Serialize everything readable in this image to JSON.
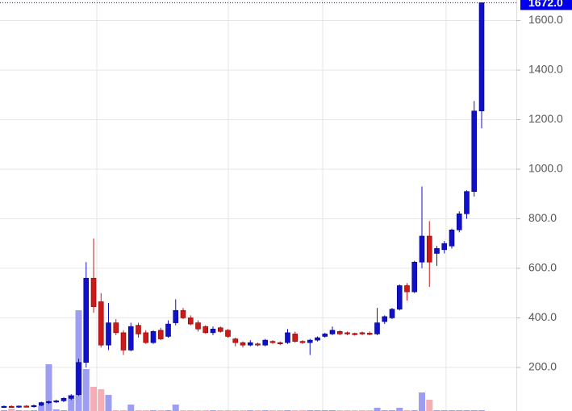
{
  "chart_data": {
    "type": "candlestick",
    "open": [
      40,
      43,
      41,
      44,
      42,
      46,
      58,
      62,
      65,
      75,
      90,
      220,
      560,
      465,
      290,
      380,
      340,
      270,
      370,
      340,
      300,
      350,
      325,
      380,
      430,
      400,
      380,
      365,
      340,
      360,
      350,
      315,
      300,
      290,
      295,
      290,
      305,
      300,
      300,
      335,
      305,
      300,
      310,
      325,
      335,
      345,
      340,
      337,
      340,
      338,
      335,
      385,
      400,
      435,
      530,
      505,
      625,
      730,
      660,
      675,
      690,
      755,
      820,
      910,
      1235
    ],
    "high": [
      46,
      47,
      46,
      48,
      50,
      62,
      66,
      70,
      80,
      92,
      235,
      625,
      720,
      500,
      460,
      395,
      350,
      380,
      380,
      350,
      350,
      360,
      390,
      475,
      440,
      410,
      390,
      370,
      365,
      365,
      355,
      320,
      305,
      310,
      300,
      315,
      310,
      305,
      355,
      345,
      310,
      315,
      325,
      340,
      365,
      350,
      345,
      340,
      345,
      345,
      440,
      410,
      440,
      535,
      540,
      630,
      930,
      790,
      690,
      710,
      760,
      830,
      915,
      1275,
      1672
    ],
    "low": [
      36,
      38,
      37,
      40,
      38,
      44,
      52,
      56,
      60,
      68,
      85,
      200,
      420,
      280,
      270,
      330,
      250,
      265,
      320,
      295,
      295,
      310,
      320,
      370,
      395,
      370,
      345,
      335,
      330,
      340,
      320,
      285,
      280,
      285,
      285,
      285,
      295,
      290,
      295,
      300,
      295,
      250,
      305,
      320,
      330,
      330,
      330,
      328,
      330,
      330,
      330,
      375,
      395,
      430,
      470,
      500,
      600,
      525,
      610,
      660,
      680,
      745,
      800,
      890,
      1165
    ],
    "close": [
      43,
      41,
      44,
      42,
      46,
      58,
      62,
      65,
      75,
      85,
      220,
      560,
      445,
      290,
      380,
      340,
      270,
      365,
      335,
      300,
      345,
      315,
      375,
      430,
      400,
      375,
      355,
      340,
      355,
      345,
      325,
      300,
      290,
      300,
      290,
      310,
      300,
      298,
      340,
      305,
      300,
      310,
      320,
      335,
      350,
      335,
      335,
      333,
      335,
      333,
      380,
      405,
      435,
      530,
      505,
      625,
      730,
      625,
      680,
      700,
      755,
      820,
      910,
      1235,
      1672
    ],
    "volume": [
      1,
      3,
      1,
      1,
      1,
      6,
      58,
      2,
      1,
      20,
      125,
      52,
      30,
      27,
      20,
      1,
      1,
      8,
      1,
      1,
      1,
      1,
      1,
      8,
      1,
      1,
      1,
      1,
      1,
      1,
      1,
      1,
      1,
      1,
      1,
      1,
      1,
      1,
      1,
      1,
      1,
      1,
      1,
      1,
      1,
      1,
      1,
      1,
      1,
      1,
      4,
      1,
      1,
      4,
      1,
      1,
      23,
      14,
      1,
      1,
      1,
      1,
      1,
      1,
      1
    ],
    "volume_lim": [
      0,
      150
    ],
    "up_color": "#1010c8",
    "down_color": "#cc1a1a",
    "up_volume_color": "#8c8cf0",
    "down_volume_color": "#f5a0a8",
    "ylim": [
      24,
      1683
    ],
    "yticks": [
      {
        "value": 200,
        "label": "200.0"
      },
      {
        "value": 400,
        "label": "400.0"
      },
      {
        "value": 600,
        "label": "600.0"
      },
      {
        "value": 800,
        "label": "800.0"
      },
      {
        "value": 1000,
        "label": "1000.0"
      },
      {
        "value": 1200,
        "label": "1200.0"
      },
      {
        "value": 1400,
        "label": "1400.0"
      },
      {
        "value": 1600,
        "label": "1600.0"
      }
    ],
    "last_price": {
      "value": 1672,
      "label": "1672.0"
    },
    "grid": true
  }
}
